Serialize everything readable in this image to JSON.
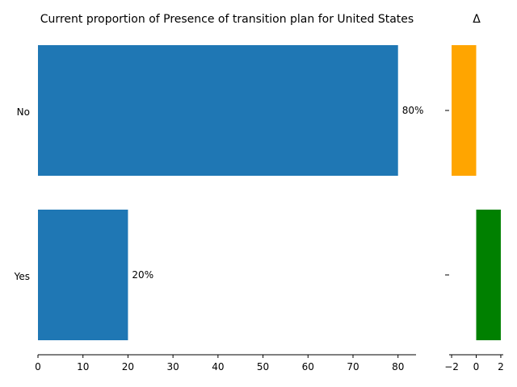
{
  "chart_data": [
    {
      "type": "bar",
      "orientation": "horizontal",
      "title": "Current proportion of Presence of transition plan for United States",
      "categories": [
        "No",
        "Yes"
      ],
      "values": [
        80,
        20
      ],
      "data_labels": [
        "80%",
        "20%"
      ],
      "xlim": [
        0,
        84
      ],
      "xticks": [
        0,
        10,
        20,
        30,
        40,
        50,
        60,
        70,
        80
      ],
      "xlabel": "",
      "ylabel": "",
      "grid": false,
      "bar_color": "#1f77b4"
    },
    {
      "type": "bar",
      "orientation": "horizontal",
      "title": "Δ",
      "categories": [
        "No",
        "Yes"
      ],
      "values": [
        -2,
        2
      ],
      "colors": [
        "#ffa500",
        "#008000"
      ],
      "xlim": [
        -2.2,
        2.2
      ],
      "xticks": [
        -2,
        0,
        2
      ],
      "xtick_labels": [
        "−2",
        "0",
        "2"
      ],
      "grid": false
    }
  ]
}
